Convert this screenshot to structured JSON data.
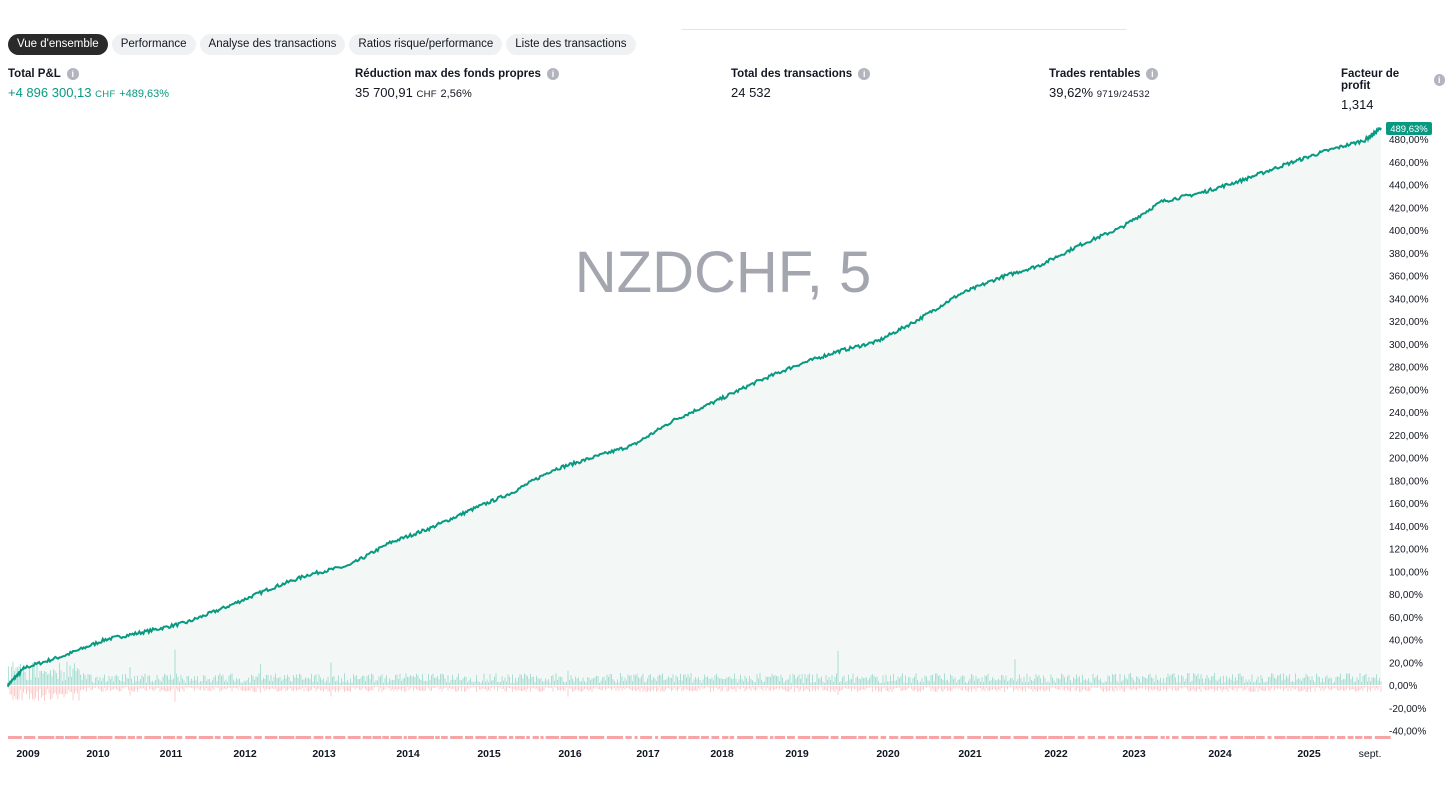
{
  "tabs": [
    "Vue d'ensemble",
    "Performance",
    "Analyse des transactions",
    "Ratios risque/performance",
    "Liste des transactions"
  ],
  "stats": {
    "pnl": {
      "label": "Total P&L",
      "value": "+4 896 300,13",
      "unit": "CHF",
      "pct": "+489,63%"
    },
    "drawdown": {
      "label": "Réduction max des fonds propres",
      "value": "35 700,91",
      "unit": "CHF",
      "pct": "2,56%"
    },
    "trades": {
      "label": "Total des transactions",
      "value": "24 532"
    },
    "profitable": {
      "label": "Trades rentables",
      "value": "39,62%",
      "detail": "9719/24532"
    },
    "profit_factor": {
      "label": "Facteur de profit",
      "value": "1,314"
    }
  },
  "colors": {
    "equity": "#089981",
    "fill": "#f3f8f6",
    "positive": "#22ab94",
    "negative": "#f77c80"
  },
  "chart_data": {
    "type": "line",
    "watermark": "NZDCHF, 5",
    "last_value_label": "489,63%",
    "ylim": [
      -40,
      490
    ],
    "y_ticks": [
      "-40,00%",
      "-20,00%",
      "0,00%",
      "20,00%",
      "40,00%",
      "60,00%",
      "80,00%",
      "100,00%",
      "120,00%",
      "140,00%",
      "160,00%",
      "180,00%",
      "200,00%",
      "220,00%",
      "240,00%",
      "260,00%",
      "280,00%",
      "300,00%",
      "320,00%",
      "340,00%",
      "360,00%",
      "380,00%",
      "400,00%",
      "420,00%",
      "440,00%",
      "460,00%",
      "480,00%"
    ],
    "x_ticks": [
      "2009",
      "2010",
      "2011",
      "2012",
      "2013",
      "2014",
      "2015",
      "2016",
      "2017",
      "2018",
      "2019",
      "2020",
      "2021",
      "2022",
      "2023",
      "2024",
      "2025",
      "sept."
    ],
    "series": [
      {
        "x": [
          2008.8,
          2009.0,
          2009.5,
          2010.0,
          2010.5,
          2011.0,
          2011.5,
          2012.0,
          2012.5,
          2013.0,
          2013.5,
          2014.0,
          2014.5,
          2015.0,
          2015.5,
          2016.0,
          2016.5,
          2017.0,
          2017.5,
          2018.0,
          2018.5,
          2019.0,
          2019.5,
          2020.0,
          2020.5,
          2021.0,
          2021.5,
          2022.0,
          2022.5,
          2023.0,
          2023.5,
          2024.0,
          2024.5,
          2025.0,
          2025.5,
          2025.7
        ],
        "y": [
          0,
          15,
          26,
          40,
          47,
          55,
          69,
          84,
          97,
          105,
          125,
          138,
          154,
          169,
          189,
          200,
          211,
          233,
          249,
          266,
          281,
          293,
          302,
          321,
          343,
          358,
          369,
          387,
          402,
          425,
          433,
          444,
          457,
          469,
          479,
          489.63
        ]
      }
    ]
  }
}
